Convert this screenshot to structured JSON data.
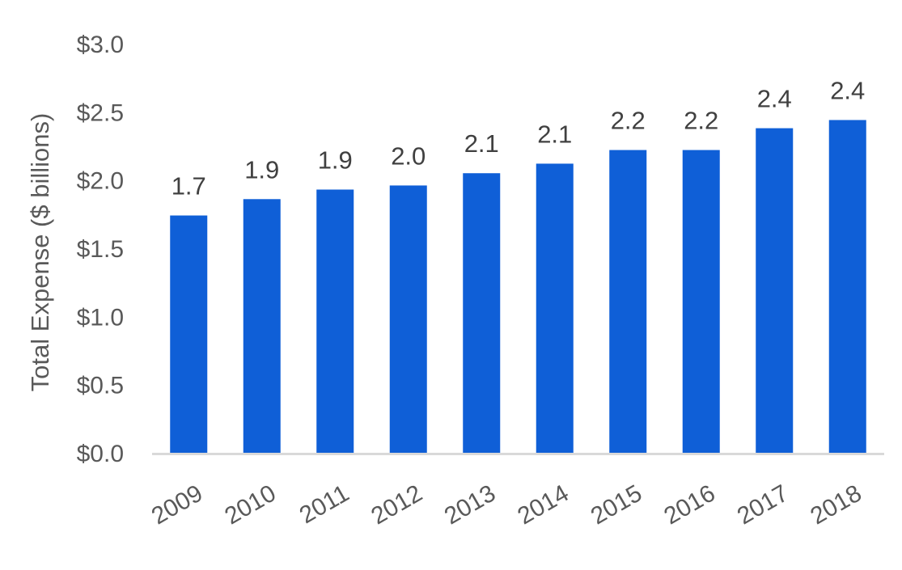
{
  "chart_data": {
    "type": "bar",
    "title": "",
    "xlabel": "",
    "ylabel": "Total Expense ($ billions)",
    "ylim": [
      0,
      3.0
    ],
    "y_ticks": [
      0.0,
      0.5,
      1.0,
      1.5,
      2.0,
      2.5,
      3.0
    ],
    "y_tick_labels": [
      "$0.0",
      "$0.5",
      "$1.0",
      "$1.5",
      "$2.0",
      "$2.5",
      "$3.0"
    ],
    "categories": [
      "2009",
      "2010",
      "2011",
      "2012",
      "2013",
      "2014",
      "2015",
      "2016",
      "2017",
      "2018"
    ],
    "values": [
      1.74,
      1.86,
      1.93,
      1.96,
      2.05,
      2.12,
      2.22,
      2.22,
      2.38,
      2.44
    ],
    "data_labels": [
      "1.7",
      "1.9",
      "1.9",
      "2.0",
      "2.1",
      "2.1",
      "2.2",
      "2.2",
      "2.4",
      "2.4"
    ],
    "bar_color": "#0F5FD7",
    "axis_color": "#D9D9D9",
    "grid": false,
    "legend": "none"
  }
}
